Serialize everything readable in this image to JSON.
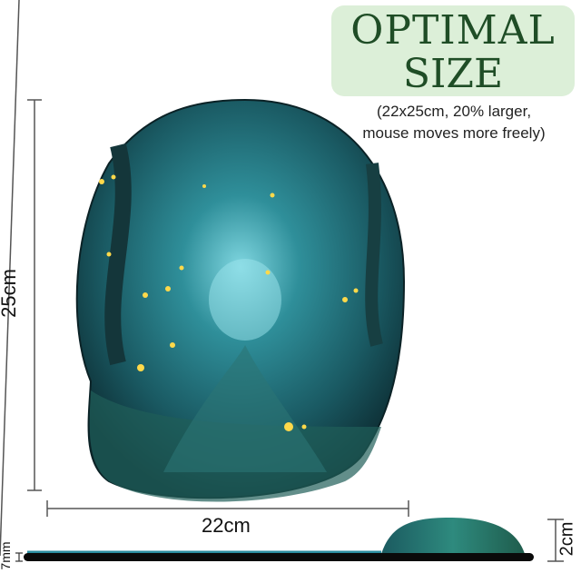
{
  "badge": {
    "line1": "OPTIMAL",
    "line2": "SIZE"
  },
  "subtitle": {
    "line1": "(22x25cm, 20% larger,",
    "line2": "mouse moves more freely)"
  },
  "dimensions": {
    "height": "25cm",
    "width": "22cm",
    "wrist_rest_height": "2cm",
    "base_thickness": "7mm"
  },
  "colors": {
    "badge_bg": "#dcefd8",
    "badge_text": "#1f4d26",
    "forest_teal": "#1f6f78",
    "firefly": "#ffd94a"
  }
}
